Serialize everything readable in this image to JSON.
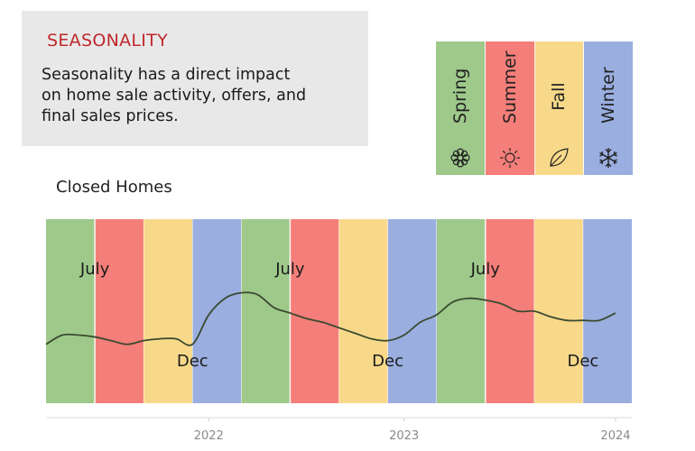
{
  "info": {
    "title": "SEASONALITY",
    "body": "Seasonality has a direct impact on home sale activity, offers, and final sales prices."
  },
  "legend": {
    "items": [
      {
        "label": "Spring",
        "icon": "flower-icon",
        "color": "#9ec98a"
      },
      {
        "label": "Summer",
        "icon": "sun-icon",
        "color": "#f47e79"
      },
      {
        "label": "Fall",
        "icon": "leaf-icon",
        "color": "#f8d98a"
      },
      {
        "label": "Winter",
        "icon": "snowflake-icon",
        "color": "#9aaee0"
      }
    ]
  },
  "chart_data": {
    "type": "line",
    "title": "Closed Homes",
    "season_colors": {
      "Spring": "#9ec98a",
      "Summer": "#f47e79",
      "Fall": "#f8d98a",
      "Winter": "#9aaee0"
    },
    "season_bands": [
      {
        "season": "Spring",
        "start": "2021-03",
        "end": "2021-06"
      },
      {
        "season": "Summer",
        "start": "2021-06",
        "end": "2021-09"
      },
      {
        "season": "Fall",
        "start": "2021-09",
        "end": "2021-12"
      },
      {
        "season": "Winter",
        "start": "2021-12",
        "end": "2022-03"
      },
      {
        "season": "Spring",
        "start": "2022-03",
        "end": "2022-06"
      },
      {
        "season": "Summer",
        "start": "2022-06",
        "end": "2022-09"
      },
      {
        "season": "Fall",
        "start": "2022-09",
        "end": "2022-12"
      },
      {
        "season": "Winter",
        "start": "2022-12",
        "end": "2023-03"
      },
      {
        "season": "Spring",
        "start": "2023-03",
        "end": "2023-06"
      },
      {
        "season": "Summer",
        "start": "2023-06",
        "end": "2023-09"
      },
      {
        "season": "Fall",
        "start": "2023-09",
        "end": "2023-12"
      },
      {
        "season": "Winter",
        "start": "2023-12",
        "end": "2024-03"
      }
    ],
    "x_start": "2021-03",
    "x_end": "2024-03",
    "x_ticks": [
      {
        "label": "2022",
        "date": "2022-01"
      },
      {
        "label": "2023",
        "date": "2023-01"
      },
      {
        "label": "2024",
        "date": "2024-02"
      }
    ],
    "annotations": [
      {
        "text": "July",
        "date": "2021-06",
        "level": 0.7
      },
      {
        "text": "Dec",
        "date": "2021-12",
        "level": 0.2
      },
      {
        "text": "July",
        "date": "2022-06",
        "level": 0.7
      },
      {
        "text": "Dec",
        "date": "2022-12",
        "level": 0.2
      },
      {
        "text": "July",
        "date": "2023-06",
        "level": 0.7
      },
      {
        "text": "Dec",
        "date": "2023-12",
        "level": 0.2
      }
    ],
    "ylim": [
      0,
      1
    ],
    "series": [
      {
        "color": "#3a4a30",
        "points": [
          [
            "2021-03",
            0.32
          ],
          [
            "2021-04",
            0.37
          ],
          [
            "2021-05",
            0.37
          ],
          [
            "2021-06",
            0.36
          ],
          [
            "2021-07",
            0.34
          ],
          [
            "2021-08",
            0.32
          ],
          [
            "2021-09",
            0.34
          ],
          [
            "2021-10",
            0.35
          ],
          [
            "2021-11",
            0.35
          ],
          [
            "2021-12",
            0.32
          ],
          [
            "2022-01",
            0.48
          ],
          [
            "2022-02",
            0.57
          ],
          [
            "2022-03",
            0.6
          ],
          [
            "2022-04",
            0.59
          ],
          [
            "2022-05",
            0.52
          ],
          [
            "2022-06",
            0.49
          ],
          [
            "2022-07",
            0.46
          ],
          [
            "2022-08",
            0.44
          ],
          [
            "2022-09",
            0.41
          ],
          [
            "2022-10",
            0.38
          ],
          [
            "2022-11",
            0.35
          ],
          [
            "2022-12",
            0.34
          ],
          [
            "2023-01",
            0.37
          ],
          [
            "2023-02",
            0.44
          ],
          [
            "2023-03",
            0.48
          ],
          [
            "2023-04",
            0.55
          ],
          [
            "2023-05",
            0.57
          ],
          [
            "2023-06",
            0.56
          ],
          [
            "2023-07",
            0.54
          ],
          [
            "2023-08",
            0.5
          ],
          [
            "2023-09",
            0.5
          ],
          [
            "2023-10",
            0.47
          ],
          [
            "2023-11",
            0.45
          ],
          [
            "2023-12",
            0.45
          ],
          [
            "2024-01",
            0.45
          ],
          [
            "2024-02",
            0.49
          ]
        ]
      }
    ]
  }
}
